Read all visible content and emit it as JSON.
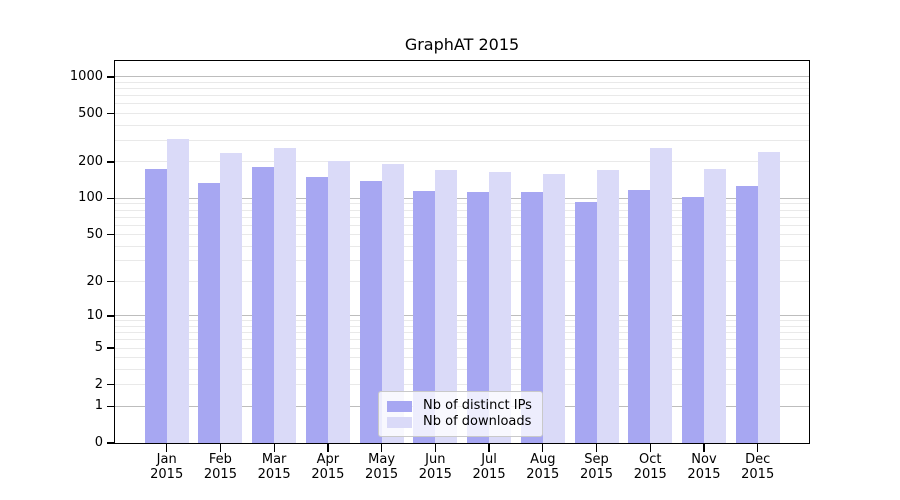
{
  "title": "GraphAT 2015",
  "colors": {
    "bar_distinct_ips": "#a7a7f2",
    "bar_downloads": "#dadaf8",
    "grid_major": "#bdbdbd",
    "grid_minor": "#e9e9e9",
    "spine": "#000000",
    "text": "#000000",
    "legend_border": "#c9c9c9"
  },
  "x_axis": {
    "months": [
      "Jan",
      "Feb",
      "Mar",
      "Apr",
      "May",
      "Jun",
      "Jul",
      "Aug",
      "Sep",
      "Oct",
      "Nov",
      "Dec"
    ],
    "year": "2015"
  },
  "y_axis": {
    "ticks": [
      0,
      1,
      2,
      5,
      10,
      20,
      50,
      100,
      200,
      500,
      1000
    ]
  },
  "chart_data": {
    "type": "bar",
    "title": "GraphAT 2015",
    "categories": [
      "Jan 2015",
      "Feb 2015",
      "Mar 2015",
      "Apr 2015",
      "May 2015",
      "Jun 2015",
      "Jul 2015",
      "Aug 2015",
      "Sep 2015",
      "Oct 2015",
      "Nov 2015",
      "Dec 2015"
    ],
    "series": [
      {
        "name": "Nb of distinct IPs",
        "color": "#a7a7f2",
        "values": [
          175,
          134,
          180,
          149,
          138,
          116,
          114,
          114,
          94,
          117,
          102,
          126
        ]
      },
      {
        "name": "Nb of downloads",
        "color": "#dadaf8",
        "values": [
          310,
          239,
          260,
          204,
          193,
          170,
          165,
          158,
          170,
          259,
          175,
          240
        ]
      }
    ],
    "yscale": "symlog (log(1+y))",
    "y_ticks": [
      0,
      1,
      2,
      5,
      10,
      20,
      50,
      100,
      200,
      500,
      1000
    ],
    "ylim": [
      0,
      1350
    ],
    "xlabel": "",
    "ylabel": "",
    "grid": "horizontal",
    "legend_position": "lower-center-inside"
  }
}
